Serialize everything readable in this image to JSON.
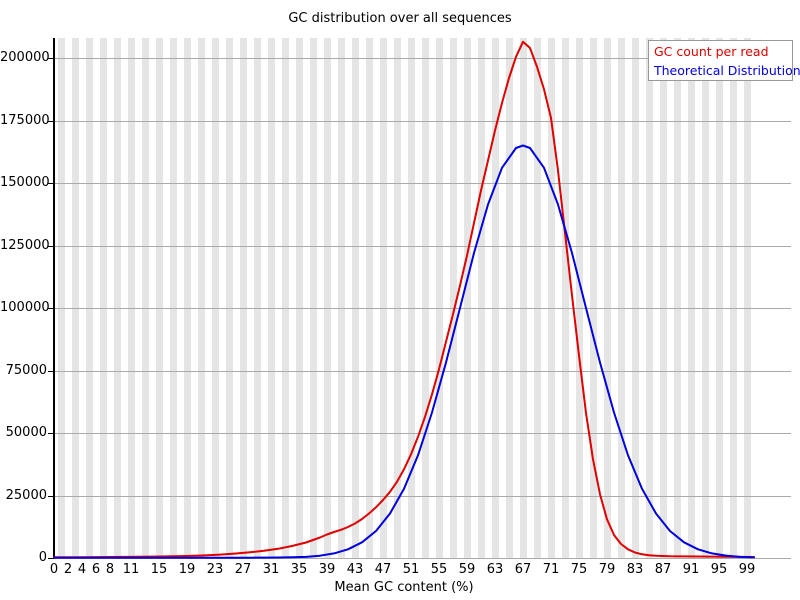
{
  "chart_data": {
    "type": "line",
    "title": "GC distribution over all sequences",
    "xlabel": "Mean GC content (%)",
    "ylabel": "",
    "xlim": [
      0,
      100
    ],
    "ylim": [
      0,
      208000
    ],
    "grid": "horizontal gray lines at every 25000",
    "background": "alternating light-gray vertical stripes per 2% bin",
    "legend_position": "top-right",
    "yticks": [
      0,
      25000,
      50000,
      75000,
      100000,
      125000,
      150000,
      175000,
      200000
    ],
    "xticks": [
      0,
      2,
      4,
      6,
      8,
      11,
      15,
      19,
      23,
      27,
      31,
      35,
      39,
      43,
      47,
      51,
      55,
      59,
      63,
      67,
      71,
      75,
      79,
      83,
      87,
      91,
      95,
      99
    ],
    "series": [
      {
        "name": "GC count per read",
        "color": "#e00000",
        "points": [
          [
            0,
            300
          ],
          [
            2,
            300
          ],
          [
            4,
            300
          ],
          [
            6,
            350
          ],
          [
            8,
            400
          ],
          [
            10,
            450
          ],
          [
            12,
            500
          ],
          [
            14,
            550
          ],
          [
            16,
            650
          ],
          [
            18,
            750
          ],
          [
            20,
            900
          ],
          [
            22,
            1100
          ],
          [
            24,
            1400
          ],
          [
            26,
            1800
          ],
          [
            28,
            2300
          ],
          [
            30,
            2900
          ],
          [
            32,
            3700
          ],
          [
            34,
            4800
          ],
          [
            36,
            6200
          ],
          [
            38,
            8200
          ],
          [
            39,
            9400
          ],
          [
            40,
            10400
          ],
          [
            41,
            11300
          ],
          [
            42,
            12400
          ],
          [
            43,
            13800
          ],
          [
            44,
            15600
          ],
          [
            45,
            17800
          ],
          [
            46,
            20300
          ],
          [
            47,
            23200
          ],
          [
            48,
            26500
          ],
          [
            49,
            30500
          ],
          [
            50,
            35500
          ],
          [
            51,
            41500
          ],
          [
            52,
            48500
          ],
          [
            53,
            56500
          ],
          [
            54,
            65500
          ],
          [
            55,
            75500
          ],
          [
            56,
            86500
          ],
          [
            57,
            97500
          ],
          [
            58,
            109000
          ],
          [
            59,
            121000
          ],
          [
            60,
            134000
          ],
          [
            61,
            147000
          ],
          [
            62,
            159000
          ],
          [
            63,
            171000
          ],
          [
            64,
            182000
          ],
          [
            65,
            192000
          ],
          [
            66,
            200500
          ],
          [
            67,
            206500
          ],
          [
            68,
            204000
          ],
          [
            69,
            196500
          ],
          [
            70,
            187500
          ],
          [
            71,
            176000
          ],
          [
            72,
            155000
          ],
          [
            73,
            130000
          ],
          [
            74,
            105000
          ],
          [
            75,
            81000
          ],
          [
            76,
            58000
          ],
          [
            77,
            39500
          ],
          [
            78,
            25500
          ],
          [
            79,
            15500
          ],
          [
            80,
            9200
          ],
          [
            81,
            5600
          ],
          [
            82,
            3500
          ],
          [
            83,
            2200
          ],
          [
            84,
            1500
          ],
          [
            85,
            1100
          ],
          [
            86,
            900
          ],
          [
            87,
            800
          ],
          [
            88,
            700
          ],
          [
            90,
            650
          ],
          [
            92,
            600
          ],
          [
            94,
            550
          ],
          [
            96,
            500
          ],
          [
            98,
            450
          ],
          [
            100,
            400
          ]
        ]
      },
      {
        "name": "Theoretical Distribution",
        "color": "#0000e0",
        "points": [
          [
            0,
            100
          ],
          [
            4,
            100
          ],
          [
            8,
            100
          ],
          [
            12,
            100
          ],
          [
            16,
            100
          ],
          [
            20,
            100
          ],
          [
            24,
            100
          ],
          [
            28,
            120
          ],
          [
            30,
            150
          ],
          [
            32,
            200
          ],
          [
            34,
            300
          ],
          [
            36,
            450
          ],
          [
            38,
            920
          ],
          [
            40,
            1830
          ],
          [
            42,
            3480
          ],
          [
            44,
            6300
          ],
          [
            46,
            10800
          ],
          [
            48,
            17800
          ],
          [
            50,
            27700
          ],
          [
            52,
            41100
          ],
          [
            54,
            58200
          ],
          [
            56,
            78200
          ],
          [
            58,
            100000
          ],
          [
            60,
            122000
          ],
          [
            62,
            141400
          ],
          [
            64,
            156100
          ],
          [
            66,
            164000
          ],
          [
            67,
            165000
          ],
          [
            68,
            164000
          ],
          [
            70,
            156100
          ],
          [
            72,
            141400
          ],
          [
            74,
            122000
          ],
          [
            76,
            100000
          ],
          [
            78,
            78200
          ],
          [
            80,
            58200
          ],
          [
            82,
            41100
          ],
          [
            84,
            27700
          ],
          [
            86,
            17800
          ],
          [
            88,
            10800
          ],
          [
            90,
            6300
          ],
          [
            92,
            3500
          ],
          [
            94,
            1850
          ],
          [
            96,
            950
          ],
          [
            98,
            450
          ],
          [
            100,
            250
          ]
        ]
      }
    ]
  },
  "legend": {
    "border_color": "#999999"
  },
  "colors": {
    "background": "#ffffff",
    "stripe": "#e5e5e5",
    "gridline": "#aaaaaa",
    "axis": "#000000",
    "title_text": "#000000",
    "tick_text": "#000000"
  }
}
